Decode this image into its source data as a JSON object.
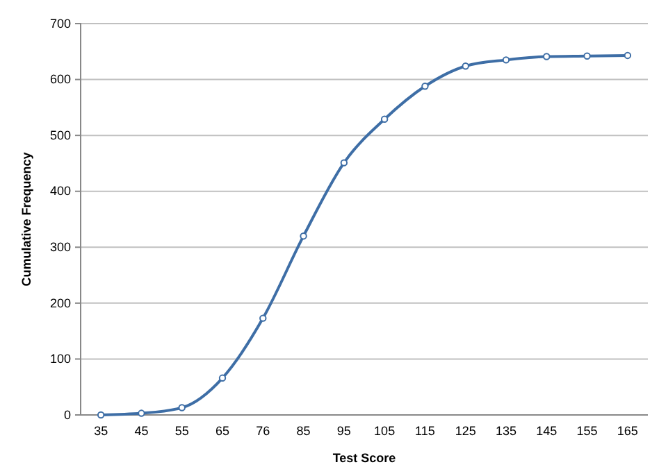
{
  "chart_data": {
    "type": "line",
    "xlabel": "Test Score",
    "ylabel": "Cumulative Frequency",
    "categories": [
      "35",
      "45",
      "55",
      "65",
      "76",
      "85",
      "95",
      "105",
      "115",
      "125",
      "135",
      "145",
      "155",
      "165"
    ],
    "series": [
      {
        "color": "#3e6ea6",
        "values": [
          0,
          3,
          13,
          66,
          173,
          320,
          451,
          529,
          588,
          624,
          635,
          641,
          642,
          643
        ]
      }
    ],
    "ylim": [
      0,
      700
    ],
    "yticks": [
      0,
      100,
      200,
      300,
      400,
      500,
      600,
      700
    ],
    "grid": "y",
    "marker": "circle",
    "line_style": "solid"
  }
}
